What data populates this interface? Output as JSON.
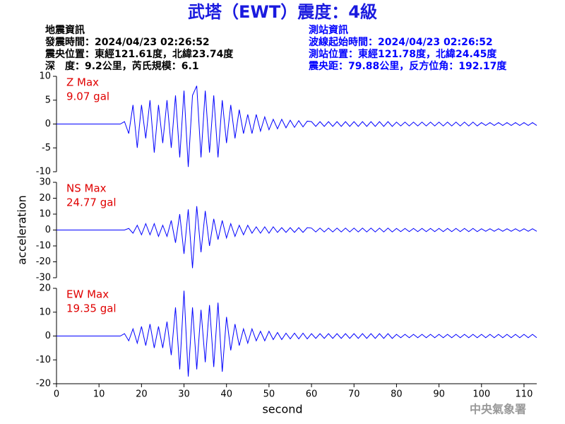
{
  "title": "武塔（EWT）震度：4級",
  "event_info": [
    "地震資訊",
    "發震時間：2024/04/23 02:26:52",
    "震央位置：東經121.61度，北緯23.74度",
    "深　度：9.2公里，芮氏規模：6.1"
  ],
  "station_info": [
    "測站資訊",
    "波線起始時間：2024/04/23 02:26:52",
    "測站位置：東經121.78度，北緯24.45度",
    "震央距：79.88公里，反方位角：192.17度"
  ],
  "footer": "中央氣象署",
  "chart_data": [
    {
      "type": "line",
      "annotations": [
        "Z Max",
        "9.07 gal"
      ],
      "color": "#0000ff",
      "xlim": [
        0,
        113
      ],
      "ylim": [
        -10,
        10
      ],
      "yticks": [
        10,
        5,
        0,
        -5,
        -10
      ],
      "x": [
        0,
        1,
        2,
        3,
        4,
        5,
        6,
        7,
        8,
        9,
        10,
        11,
        12,
        13,
        14,
        15,
        16,
        17,
        18,
        19,
        20,
        21,
        22,
        23,
        24,
        25,
        26,
        27,
        28,
        29,
        30,
        31,
        32,
        33,
        34,
        35,
        36,
        37,
        38,
        39,
        40,
        41,
        42,
        43,
        44,
        45,
        46,
        47,
        48,
        49,
        50,
        51,
        52,
        53,
        54,
        55,
        56,
        57,
        58,
        59,
        60,
        61,
        62,
        63,
        64,
        65,
        66,
        67,
        68,
        69,
        70,
        71,
        72,
        73,
        74,
        75,
        76,
        77,
        78,
        79,
        80,
        81,
        82,
        83,
        84,
        85,
        86,
        87,
        88,
        89,
        90,
        91,
        92,
        93,
        94,
        95,
        96,
        97,
        98,
        99,
        100,
        101,
        102,
        103,
        104,
        105,
        106,
        107,
        108,
        109,
        110,
        111,
        112,
        113
      ],
      "values": [
        0,
        0,
        0,
        0,
        0,
        0,
        0,
        0,
        0,
        0,
        0,
        0,
        0,
        0,
        0,
        0,
        0.5,
        -2,
        4,
        -5,
        4,
        -3,
        5,
        -6,
        4,
        -4,
        5,
        -5,
        6,
        -7,
        7,
        -9,
        6,
        8,
        -7,
        7,
        -6,
        6,
        -7,
        5,
        -4,
        4,
        -3,
        3,
        -2,
        2,
        -2,
        2,
        -1.5,
        1.5,
        -1.2,
        1,
        -1,
        1,
        -0.8,
        0.8,
        -0.7,
        0.7,
        -0.6,
        0.6,
        0.5,
        -0.5,
        0.5,
        -0.5,
        0.5,
        -0.5,
        0.5,
        -0.5,
        0.5,
        -0.5,
        0.5,
        -0.5,
        0.5,
        -0.5,
        0.5,
        -0.5,
        0.5,
        -0.5,
        0.5,
        -0.5,
        0.4,
        -0.4,
        0.4,
        -0.4,
        0.4,
        -0.4,
        0.4,
        -0.4,
        0.4,
        -0.4,
        0.4,
        -0.4,
        0.4,
        -0.4,
        0.4,
        -0.4,
        0.4,
        -0.4,
        0.4,
        -0.4,
        0.3,
        -0.3,
        0.3,
        -0.3,
        0.3,
        -0.3,
        0.3,
        -0.3,
        0.3,
        -0.3,
        0.3,
        -0.3,
        0.3,
        -0.3
      ]
    },
    {
      "type": "line",
      "annotations": [
        "NS Max",
        "24.77 gal"
      ],
      "color": "#0000ff",
      "ylabel": "acceleration",
      "xlim": [
        0,
        113
      ],
      "ylim": [
        -30,
        30
      ],
      "yticks": [
        30,
        20,
        10,
        0,
        -10,
        -20,
        -30
      ],
      "x": [
        0,
        1,
        2,
        3,
        4,
        5,
        6,
        7,
        8,
        9,
        10,
        11,
        12,
        13,
        14,
        15,
        16,
        17,
        18,
        19,
        20,
        21,
        22,
        23,
        24,
        25,
        26,
        27,
        28,
        29,
        30,
        31,
        32,
        33,
        34,
        35,
        36,
        37,
        38,
        39,
        40,
        41,
        42,
        43,
        44,
        45,
        46,
        47,
        48,
        49,
        50,
        51,
        52,
        53,
        54,
        55,
        56,
        57,
        58,
        59,
        60,
        61,
        62,
        63,
        64,
        65,
        66,
        67,
        68,
        69,
        70,
        71,
        72,
        73,
        74,
        75,
        76,
        77,
        78,
        79,
        80,
        81,
        82,
        83,
        84,
        85,
        86,
        87,
        88,
        89,
        90,
        91,
        92,
        93,
        94,
        95,
        96,
        97,
        98,
        99,
        100,
        101,
        102,
        103,
        104,
        105,
        106,
        107,
        108,
        109,
        110,
        111,
        112,
        113
      ],
      "values": [
        0,
        0,
        0,
        0,
        0,
        0,
        0,
        0,
        0,
        0,
        0,
        0,
        0,
        0,
        0,
        0,
        0,
        1,
        -2,
        3,
        -3,
        4,
        -3,
        4,
        -4,
        3,
        -4,
        6,
        -8,
        10,
        -15,
        13,
        -24,
        15,
        -14,
        12,
        -10,
        7,
        -6,
        6,
        -5,
        4,
        -4,
        3,
        -3,
        3,
        -2,
        2,
        -2,
        2,
        -2,
        2,
        -1.5,
        1.5,
        -1.5,
        1.5,
        -1.5,
        1.5,
        -1.5,
        1.5,
        1.2,
        -1.2,
        1.2,
        -1.2,
        1.2,
        -1.2,
        1.2,
        -1.2,
        1.2,
        -1.2,
        1.2,
        -1.2,
        1.2,
        -1.2,
        1.2,
        -1.2,
        1.2,
        -1.2,
        1.2,
        -1.2,
        1,
        -1,
        1,
        -1,
        1,
        -1,
        1,
        -1,
        1,
        -1,
        1,
        -1,
        1,
        -1,
        1,
        -1,
        1,
        -1,
        1,
        -1,
        0.8,
        -0.8,
        0.8,
        -0.8,
        0.8,
        -0.8,
        0.8,
        -0.8,
        0.8,
        -0.8,
        0.8,
        -0.8,
        0.8,
        -0.8
      ]
    },
    {
      "type": "line",
      "annotations": [
        "EW Max",
        "19.35 gal"
      ],
      "color": "#0000ff",
      "xlabel": "second",
      "xlim": [
        0,
        113
      ],
      "ylim": [
        -20,
        20
      ],
      "yticks": [
        20,
        10,
        0,
        -10,
        -20
      ],
      "xticks": [
        0,
        10,
        20,
        30,
        40,
        50,
        60,
        70,
        80,
        90,
        100,
        110
      ],
      "x": [
        0,
        1,
        2,
        3,
        4,
        5,
        6,
        7,
        8,
        9,
        10,
        11,
        12,
        13,
        14,
        15,
        16,
        17,
        18,
        19,
        20,
        21,
        22,
        23,
        24,
        25,
        26,
        27,
        28,
        29,
        30,
        31,
        32,
        33,
        34,
        35,
        36,
        37,
        38,
        39,
        40,
        41,
        42,
        43,
        44,
        45,
        46,
        47,
        48,
        49,
        50,
        51,
        52,
        53,
        54,
        55,
        56,
        57,
        58,
        59,
        60,
        61,
        62,
        63,
        64,
        65,
        66,
        67,
        68,
        69,
        70,
        71,
        72,
        73,
        74,
        75,
        76,
        77,
        78,
        79,
        80,
        81,
        82,
        83,
        84,
        85,
        86,
        87,
        88,
        89,
        90,
        91,
        92,
        93,
        94,
        95,
        96,
        97,
        98,
        99,
        100,
        101,
        102,
        103,
        104,
        105,
        106,
        107,
        108,
        109,
        110,
        111,
        112,
        113
      ],
      "values": [
        0,
        0,
        0,
        0,
        0,
        0,
        0,
        0,
        0,
        0,
        0,
        0,
        0,
        0,
        0,
        0,
        1,
        -2,
        3,
        -3,
        4,
        -4,
        5,
        -5,
        4,
        -5,
        6,
        -8,
        12,
        -14,
        19,
        -17,
        12,
        -14,
        11,
        -11,
        13,
        -13,
        14,
        -15,
        8,
        -6,
        5,
        -4,
        3,
        -3,
        3,
        -2,
        2,
        -2,
        2,
        -1.5,
        1.5,
        -1.5,
        1.2,
        -1.2,
        1.2,
        -1.2,
        1.2,
        -1.2,
        1,
        -1,
        1,
        -1,
        1,
        -1,
        1,
        -1,
        1,
        -1,
        1,
        -1,
        1,
        -1,
        1,
        -1,
        1,
        -1,
        1,
        -1,
        0.7,
        -0.7,
        0.7,
        -0.7,
        0.7,
        -0.7,
        0.7,
        -0.7,
        0.7,
        -0.7,
        0.7,
        -0.7,
        0.7,
        -0.7,
        0.7,
        -0.7,
        0.7,
        -0.7,
        0.7,
        -0.7,
        0.7,
        -0.7,
        0.7,
        -0.7,
        0.7,
        -0.7,
        0.7,
        -0.7,
        0.7,
        -0.7,
        0.7,
        -0.7,
        0.7,
        -0.7
      ]
    }
  ]
}
